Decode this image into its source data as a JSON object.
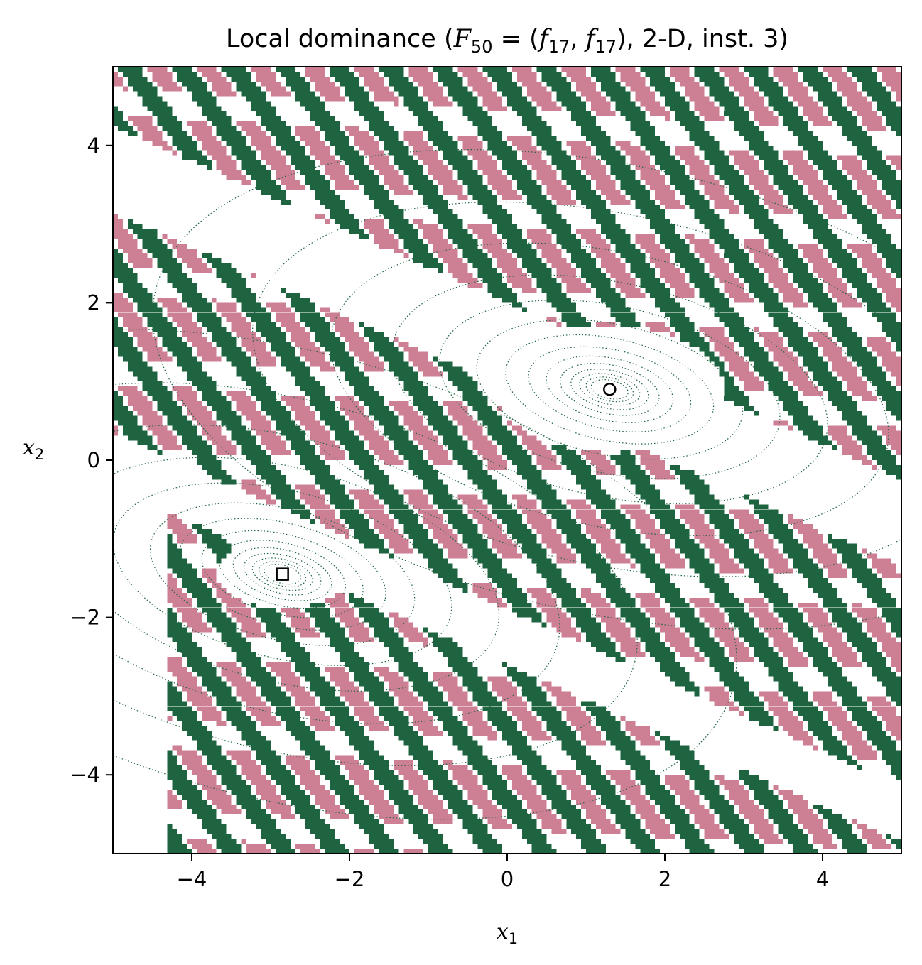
{
  "chart_data": {
    "type": "heatmap",
    "title": {
      "prefix": "Local dominance (",
      "F": "F",
      "F_sub": "50",
      "eq": " = (",
      "f1": "f",
      "f1_sub": "17",
      "comma": ", ",
      "f2": "f",
      "f2_sub": "17",
      "suffix": "), 2-D, inst. 3)"
    },
    "xlabel": {
      "var": "x",
      "sub": "1"
    },
    "ylabel": {
      "var": "x",
      "sub": "2"
    },
    "xlim": [
      -5,
      5
    ],
    "ylim": [
      -5,
      5
    ],
    "xticks": [
      -4,
      -2,
      0,
      2,
      4
    ],
    "yticks": [
      -4,
      -2,
      0,
      2,
      4
    ],
    "xtick_labels": [
      "−4",
      "−2",
      "0",
      "2",
      "4"
    ],
    "ytick_labels": [
      "−4",
      "−2",
      "0",
      "2",
      "4"
    ],
    "colors": {
      "green": "#1e6440",
      "pink": "#cd7f94",
      "contour": "#1e6440",
      "background": "#ffffff"
    },
    "optima": [
      {
        "marker": "circle",
        "x": 1.3,
        "y": 0.9
      },
      {
        "marker": "square",
        "x": -2.85,
        "y": -1.45
      }
    ],
    "basins": [
      {
        "cx": 1.3,
        "cy": 0.9
      },
      {
        "cx": -2.85,
        "cy": -1.45
      }
    ]
  }
}
